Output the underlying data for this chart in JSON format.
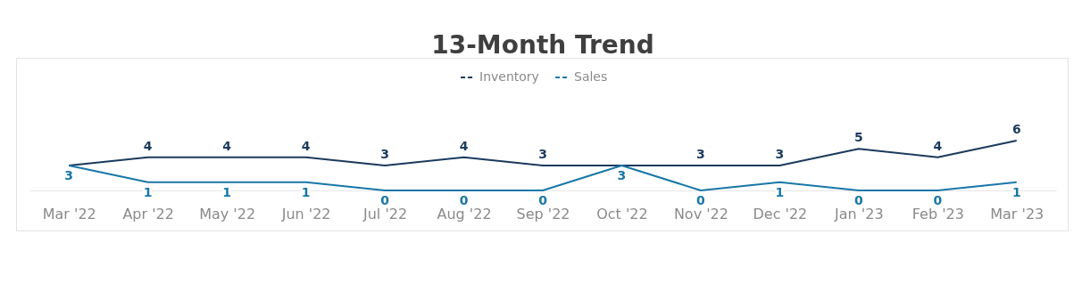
{
  "chart_data": {
    "type": "line",
    "title": "13-Month Trend",
    "categories": [
      "Mar '22",
      "Apr '22",
      "May '22",
      "Jun '22",
      "Jul '22",
      "Aug '22",
      "Sep '22",
      "Oct '22",
      "Nov '22",
      "Dec '22",
      "Jan '23",
      "Feb '23",
      "Mar '23"
    ],
    "series": [
      {
        "name": "Inventory",
        "color": "#1b3a5c",
        "values": [
          3,
          4,
          4,
          4,
          3,
          4,
          3,
          3,
          3,
          3,
          5,
          4,
          6
        ],
        "value_labels": [
          null,
          "4",
          "4",
          "4",
          "3",
          "4",
          "3",
          null,
          "3",
          "3",
          "5",
          "4",
          "6"
        ]
      },
      {
        "name": "Sales",
        "color": "#1877a8",
        "values": [
          3,
          1,
          1,
          1,
          0,
          0,
          0,
          3,
          0,
          1,
          0,
          0,
          1
        ],
        "value_labels": [
          "3",
          "1",
          "1",
          "1",
          "0",
          "0",
          "0",
          "3",
          "0",
          "1",
          "0",
          "0",
          "1"
        ]
      }
    ],
    "legend": "top",
    "tick_labels": "x",
    "marker": "none",
    "line_style": "solid",
    "grid": false
  }
}
